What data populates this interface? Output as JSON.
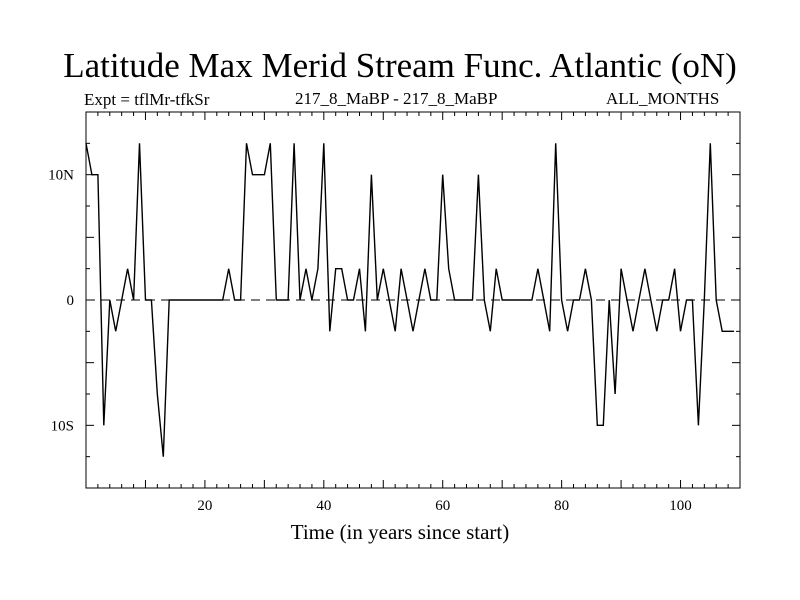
{
  "title": "Latitude Max Merid Stream Func. Atlantic (oN)",
  "subtitle_left": "Expt = tflMr-tfkSr",
  "subtitle_center": "217_8_MaBP - 217_8_MaBP",
  "subtitle_right": "ALL_MONTHS",
  "chart_data": {
    "type": "line",
    "title": "Latitude Max Merid Stream Func. Atlantic (oN)",
    "xlabel": "Time (in years since start)",
    "ylabel": "",
    "xlim": [
      0,
      110
    ],
    "ylim": [
      -15,
      15
    ],
    "x_ticks": [
      20,
      40,
      60,
      80,
      100
    ],
    "y_ticks": [
      {
        "value": 10,
        "label": "10N"
      },
      {
        "value": 0,
        "label": "0"
      },
      {
        "value": -10,
        "label": "10S"
      }
    ],
    "reference_line": {
      "value": 0,
      "style": "dashed"
    },
    "series": [
      {
        "name": "Latitude Max",
        "x": [
          0,
          1,
          2,
          3,
          4,
          5,
          6,
          7,
          8,
          9,
          10,
          11,
          12,
          13,
          14,
          15,
          16,
          17,
          18,
          19,
          20,
          21,
          22,
          23,
          24,
          25,
          26,
          27,
          28,
          29,
          30,
          31,
          32,
          33,
          34,
          35,
          36,
          37,
          38,
          39,
          40,
          41,
          42,
          43,
          44,
          45,
          46,
          47,
          48,
          49,
          50,
          51,
          52,
          53,
          54,
          55,
          56,
          57,
          58,
          59,
          60,
          61,
          62,
          63,
          64,
          65,
          66,
          67,
          68,
          69,
          70,
          71,
          72,
          73,
          74,
          75,
          76,
          77,
          78,
          79,
          80,
          81,
          82,
          83,
          84,
          85,
          86,
          87,
          88,
          89,
          90,
          91,
          92,
          93,
          94,
          95,
          96,
          97,
          98,
          99,
          100,
          101,
          102,
          103,
          104,
          105,
          106,
          107,
          108,
          109
        ],
        "values": [
          12.5,
          10,
          10,
          -10,
          0,
          -2.5,
          0,
          2.5,
          0,
          12.5,
          0,
          0,
          -7.5,
          -12.5,
          0,
          0,
          0,
          0,
          0,
          0,
          0,
          0,
          0,
          0,
          2.5,
          0,
          0,
          12.5,
          10,
          10,
          10,
          12.5,
          0,
          0,
          0,
          12.5,
          0,
          2.5,
          0,
          2.5,
          12.5,
          -2.5,
          2.5,
          2.5,
          0,
          0,
          2.5,
          -2.5,
          10,
          0,
          2.5,
          0,
          -2.5,
          2.5,
          0,
          -2.5,
          0,
          2.5,
          0,
          0,
          10,
          2.5,
          0,
          0,
          0,
          0,
          10,
          0,
          -2.5,
          2.5,
          0,
          0,
          0,
          0,
          0,
          0,
          2.5,
          0,
          -2.5,
          12.5,
          0,
          -2.5,
          0,
          0,
          2.5,
          0,
          -10,
          -10,
          0,
          -7.5,
          2.5,
          0,
          -2.5,
          0,
          2.5,
          0,
          -2.5,
          0,
          0,
          2.5,
          -2.5,
          0,
          0,
          -10,
          0,
          12.5,
          0,
          -2.5,
          -2.5,
          -2.5
        ]
      }
    ]
  }
}
